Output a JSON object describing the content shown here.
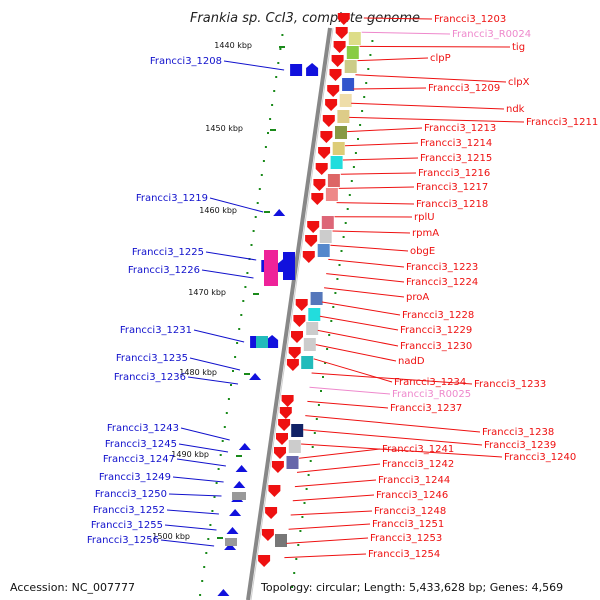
{
  "title": "Frankia sp. CcI3, complete genome",
  "footer": {
    "accession": "Accession: NC_007777",
    "summary": "Topology: circular; Length: 5,433,628 bp; Genes: 4,569"
  },
  "scale_labels": [
    "1440 kbp",
    "1450 kbp",
    "1460 kbp",
    "1470 kbp",
    "1480 kbp",
    "1490 kbp",
    "1500 kbp"
  ],
  "colors": {
    "right_label": "#ee1111",
    "left_label": "#1111cc",
    "rna_label": "#ee88cc",
    "axis": "#888888",
    "tick": "#1a8a1a"
  },
  "right_labels": [
    "Francci3_1203",
    "Francci3_R0024",
    "tig",
    "clpP",
    "clpX",
    "Francci3_1209",
    "ndk",
    "Francci3_1211",
    "Francci3_1213",
    "Francci3_1214",
    "Francci3_1215",
    "Francci3_1216",
    "Francci3_1217",
    "Francci3_1218",
    "rplU",
    "rpmA",
    "obgE",
    "Francci3_1223",
    "Francci3_1224",
    "proA",
    "Francci3_1228",
    "Francci3_1229",
    "Francci3_1230",
    "nadD",
    "Francci3_1234",
    "Francci3_1233",
    "Francci3_R0025",
    "Francci3_1237",
    "Francci3_1238",
    "Francci3_1239",
    "Francci3_1240",
    "Francci3_1241",
    "Francci3_1242",
    "Francci3_1244",
    "Francci3_1246",
    "Francci3_1248",
    "Francci3_1251",
    "Francci3_1253",
    "Francci3_1254"
  ],
  "left_labels": [
    "Francci3_1208",
    "Francci3_1219",
    "Francci3_1225",
    "Francci3_1226",
    "Francci3_1231",
    "Francci3_1235",
    "Francci3_1236",
    "Francci3_1243",
    "Francci3_1245",
    "Francci3_1247",
    "Francci3_1249",
    "Francci3_1250",
    "Francci3_1252",
    "Francci3_1255",
    "Francci3_1256"
  ]
}
